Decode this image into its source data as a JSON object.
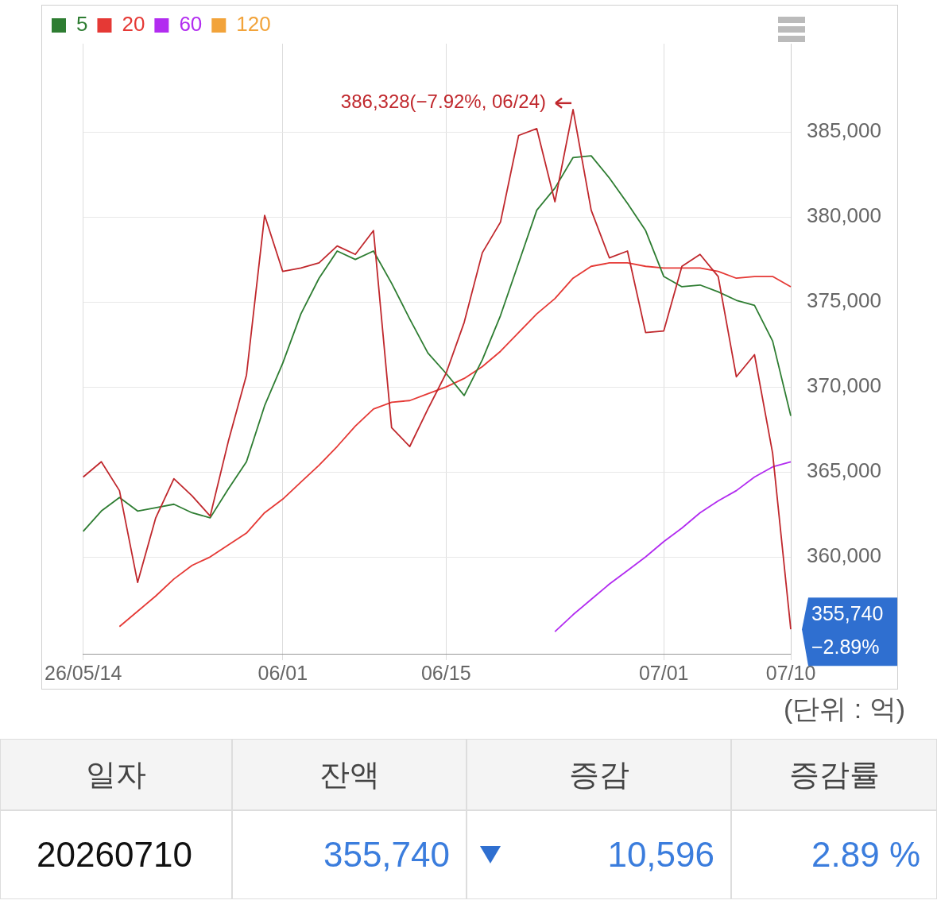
{
  "chart_data": [
    {
      "type": "line",
      "categories": [
        "26/05/14",
        null,
        null,
        null,
        null,
        null,
        null,
        null,
        null,
        null,
        null,
        "06/01",
        null,
        null,
        null,
        null,
        null,
        null,
        null,
        null,
        "06/15",
        null,
        null,
        null,
        null,
        null,
        null,
        null,
        null,
        null,
        null,
        null,
        "07/01",
        null,
        null,
        null,
        null,
        null,
        null,
        "07/10"
      ],
      "series": [
        {
          "color": "#c0282d",
          "values": [
            364700,
            365600,
            363900,
            358500,
            362300,
            364600,
            363600,
            362400,
            366800,
            370700,
            380100,
            376800,
            377000,
            377300,
            378300,
            377800,
            379200,
            367600,
            366500,
            368700,
            370800,
            373800,
            377900,
            379700,
            384800,
            385200,
            380900,
            386328,
            380400,
            377600,
            378000,
            373200,
            373300,
            377100,
            377800,
            376500,
            370600,
            371900,
            366100,
            355740
          ]
        },
        {
          "name": "5",
          "color": "#2e7d32",
          "values": [
            361500,
            362700,
            363500,
            362700,
            362900,
            363100,
            362600,
            362300,
            364000,
            365600,
            368900,
            371400,
            374300,
            376400,
            378000,
            377500,
            378000,
            376100,
            374000,
            372000,
            370800,
            369500,
            371600,
            374200,
            377300,
            380400,
            381700,
            383500,
            383600,
            382300,
            380800,
            379200,
            376500,
            375900,
            376000,
            375600,
            375100,
            374800,
            372700,
            368300
          ]
        },
        {
          "name": "20",
          "color": "#e53935",
          "values": [
            null,
            null,
            355900,
            356800,
            357700,
            358700,
            359500,
            360000,
            360700,
            361400,
            362600,
            363400,
            364400,
            365400,
            366500,
            367700,
            368700,
            369100,
            369200,
            369600,
            370000,
            370500,
            371200,
            372100,
            373200,
            374300,
            375200,
            376400,
            377100,
            377300,
            377300,
            377100,
            377000,
            377000,
            377000,
            376800,
            376400,
            376500,
            376500,
            375900
          ]
        },
        {
          "name": "60",
          "color": "#b22cf0",
          "values": [
            null,
            null,
            null,
            null,
            null,
            null,
            null,
            null,
            null,
            null,
            null,
            null,
            null,
            null,
            null,
            null,
            null,
            null,
            null,
            null,
            null,
            null,
            null,
            null,
            null,
            null,
            355600,
            356600,
            357500,
            358400,
            359200,
            360000,
            360900,
            361700,
            362600,
            363300,
            363900,
            364700,
            365300,
            365600
          ]
        },
        {
          "name": "120",
          "color": "#f2a33a",
          "values": [
            null,
            null,
            null,
            null,
            null,
            null,
            null,
            null,
            null,
            null,
            null,
            null,
            null,
            null,
            null,
            null,
            null,
            null,
            null,
            null,
            null,
            null,
            null,
            null,
            null,
            null,
            null,
            null,
            null,
            null,
            null,
            null,
            null,
            null,
            null,
            null,
            null,
            null,
            null,
            null
          ]
        }
      ],
      "ylim": [
        354300,
        390200
      ],
      "yticks": [
        {
          "value": 360000,
          "label": "360,000"
        },
        {
          "value": 365000,
          "label": "365,000"
        },
        {
          "value": 370000,
          "label": "370,000"
        },
        {
          "value": 375000,
          "label": "375,000"
        },
        {
          "value": 380000,
          "label": "380,000"
        },
        {
          "value": 385000,
          "label": "385,000"
        }
      ],
      "grid": true,
      "legend": "top left",
      "marker": "none",
      "line_style": "solid",
      "annotations": [
        "386,328(−7.92%, 06/24)",
        "355,740\n−2.89%",
        "(단위 : 억)"
      ]
    },
    {
      "type": "other",
      "categories": [
        "일자",
        "잔액",
        "증감",
        "증감률"
      ],
      "annotations": [
        "20260710",
        "355,740",
        "10,596",
        "2.89 %"
      ]
    }
  ]
}
